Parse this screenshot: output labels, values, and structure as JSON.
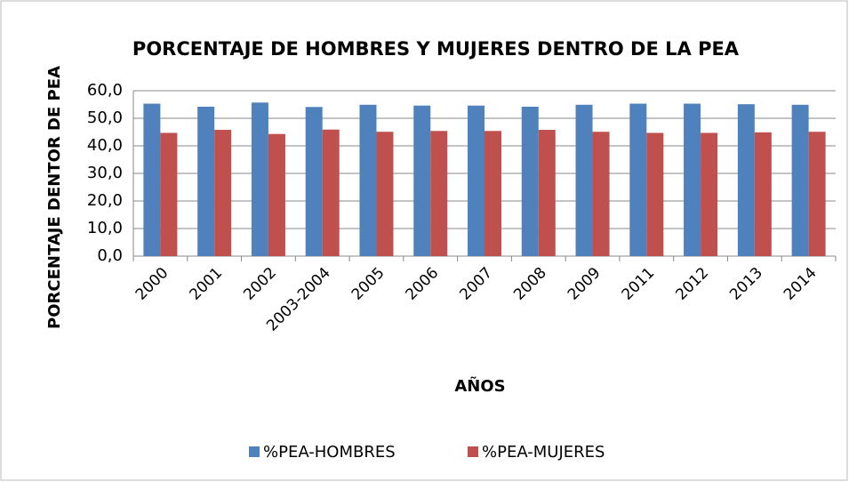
{
  "chart_data": {
    "type": "bar",
    "title": "PORCENTAJE DE HOMBRES Y MUJERES DENTRO DE LA PEA",
    "x_label": "AÑOS",
    "y_label": "PORCENTAJE DENTOR DE PEA",
    "categories": [
      "2000",
      "2001",
      "2002",
      "2003-2004",
      "2005",
      "2006",
      "2007",
      "2008",
      "2009",
      "2011",
      "2012",
      "2013",
      "2014"
    ],
    "series": [
      {
        "name": "%PEA-HOMBRES",
        "color": "#4f81bd",
        "values": [
          55.3,
          54.2,
          55.7,
          54.1,
          54.9,
          54.6,
          54.6,
          54.2,
          54.9,
          55.3,
          55.3,
          55.1,
          54.9
        ]
      },
      {
        "name": "%PEA-MUJERES",
        "color": "#c0504d",
        "values": [
          44.7,
          45.8,
          44.3,
          45.9,
          45.1,
          45.4,
          45.4,
          45.8,
          45.1,
          44.7,
          44.7,
          44.9,
          45.1
        ]
      }
    ],
    "ylim": [
      0,
      60
    ],
    "yticks": [
      {
        "value": 0,
        "label": "0,0"
      },
      {
        "value": 10,
        "label": "10,0"
      },
      {
        "value": 20,
        "label": "20,0"
      },
      {
        "value": 30,
        "label": "30,0"
      },
      {
        "value": 40,
        "label": "40,0"
      },
      {
        "value": 50,
        "label": "50,0"
      },
      {
        "value": 60,
        "label": "60,0"
      }
    ],
    "grid": true,
    "legend": "bottom"
  }
}
